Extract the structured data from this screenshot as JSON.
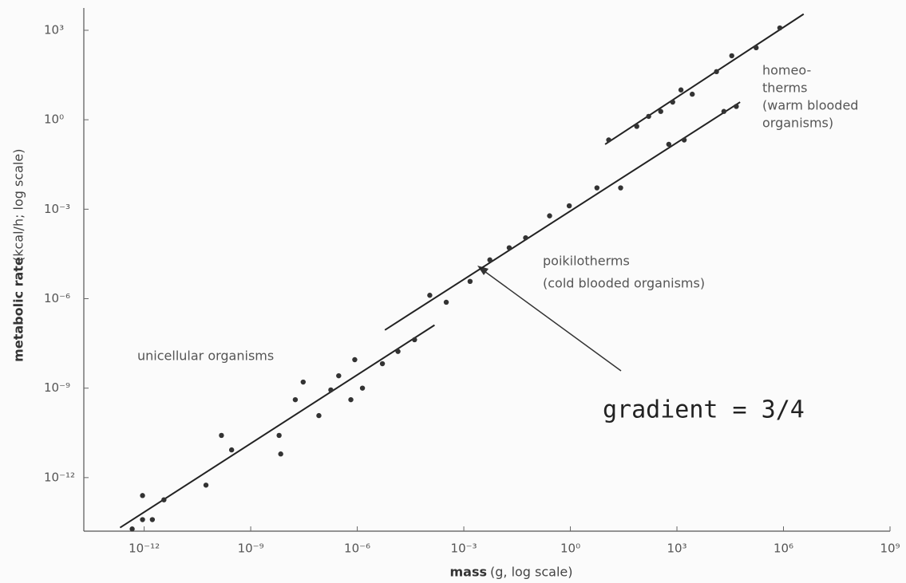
{
  "chart_data": {
    "type": "scatter",
    "xlabel": "mass",
    "xlabel_unit": "(g, log scale)",
    "ylabel": "metabolic rate",
    "ylabel_unit": "(kcal/h; log scale)",
    "log_x": true,
    "log_y": true,
    "xlim": [
      2e-14,
      1000000000.0
    ],
    "ylim": [
      1.6e-14,
      5600
    ],
    "xticks": [
      {
        "value": 1e-12,
        "label": "10⁻¹²"
      },
      {
        "value": 1e-09,
        "label": "10⁻⁹"
      },
      {
        "value": 1e-06,
        "label": "10⁻⁶"
      },
      {
        "value": 0.001,
        "label": "10⁻³"
      },
      {
        "value": 1,
        "label": "10⁰"
      },
      {
        "value": 1000,
        "label": "10³"
      },
      {
        "value": 1000000,
        "label": "10⁶"
      },
      {
        "value": 1000000000,
        "label": "10⁹"
      }
    ],
    "yticks": [
      {
        "value": 1e-12,
        "label": "10⁻¹²"
      },
      {
        "value": 1e-09,
        "label": "10⁻⁹"
      },
      {
        "value": 1e-06,
        "label": "10⁻⁶"
      },
      {
        "value": 0.001,
        "label": "10⁻³"
      },
      {
        "value": 1,
        "label": "10⁰"
      },
      {
        "value": 1000,
        "label": "10³"
      }
    ],
    "series": [
      {
        "color": "#333333",
        "x": [
          4.6e-13,
          9e-13,
          9e-13,
          1.7e-12,
          3.6e-12,
          5.5e-11,
          1.5e-10,
          2.9e-10,
          6.3e-09,
          7e-09,
          1.8e-08,
          3e-08,
          8.3e-08,
          1.8e-07,
          3e-07,
          6.6e-07,
          8.5e-07,
          1.4e-06
        ],
        "values": [
          1.9e-14,
          3.9e-14,
          2.5e-13,
          3.9e-14,
          1.8e-13,
          5.6e-13,
          2.6e-11,
          8.5e-12,
          2.6e-11,
          6.2e-12,
          4.1e-10,
          1.6e-09,
          1.2e-10,
          8.7e-10,
          2.6e-09,
          4.1e-10,
          9e-09,
          1e-09
        ]
      },
      {
        "color": "#333333",
        "x": [
          5.1e-06,
          1.4e-05,
          4.1e-05,
          0.00011,
          0.00032,
          0.0015,
          0.0054,
          0.019,
          0.055,
          0.26,
          0.93,
          5.6,
          26,
          590,
          1600,
          21000,
          47000
        ],
        "values": [
          6.6e-09,
          1.7e-08,
          4.2e-08,
          1.3e-06,
          7.6e-07,
          3.8e-06,
          2e-05,
          5.1e-05,
          0.00011,
          0.0006,
          0.0013,
          0.0052,
          0.0052,
          0.15,
          0.21,
          1.9,
          2.8
        ]
      },
      {
        "color": "#333333",
        "x": [
          12,
          74,
          160,
          350,
          760,
          1300,
          2700,
          13000,
          35000,
          170000,
          790000
        ],
        "values": [
          0.21,
          0.6,
          1.3,
          1.9,
          3.9,
          10,
          7.2,
          41,
          140,
          260,
          1200
        ]
      }
    ],
    "fit_lines": [
      {
        "color": "#222222",
        "x": [
          2.1e-13,
          0.00015
        ],
        "values": [
          2.1e-14,
          1.3e-07
        ]
      },
      {
        "color": "#222222",
        "x": [
          6e-06,
          60000
        ],
        "values": [
          8.9e-08,
          3.9
        ]
      },
      {
        "color": "#222222",
        "x": [
          9.5,
          3700000
        ],
        "values": [
          0.15,
          3500
        ]
      }
    ],
    "annotations": [
      {
        "lines": [
          "unicellular organisms"
        ]
      },
      {
        "lines": [
          "poikilotherms",
          "(cold blooded organisms)"
        ]
      },
      {
        "lines": [
          "homeo-",
          "therms",
          "(warm blooded",
          "organisms)"
        ]
      },
      {
        "lines": [
          "gradient = 3/4"
        ]
      }
    ]
  }
}
